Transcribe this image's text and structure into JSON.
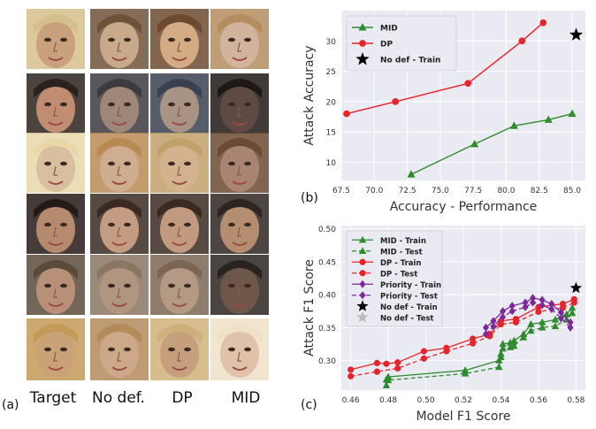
{
  "faces": {
    "column_labels": [
      "Target",
      "No def.",
      "DP",
      "MID"
    ],
    "rows": [
      [
        "#c9a17e",
        "#c8a98a",
        "#d3ab85",
        "#d2b39e"
      ],
      [
        "#c08c72",
        "#9e8678",
        "#a99384",
        "#5e4a42"
      ],
      [
        "#d8bfa0",
        "#cfae8f",
        "#d4b28e",
        "#a98472"
      ],
      [
        "#b68a6e",
        "#c49c82",
        "#c29a80",
        "#b58e72"
      ],
      [
        "#b89078",
        "#b09680",
        "#b49a84",
        "#6e5648"
      ],
      [
        "#c9a277",
        "#cda889",
        "#c6a07c",
        "#e0c2ab"
      ]
    ],
    "hair": [
      [
        "#d6bf8c",
        "#6e5238",
        "#6b4a2f",
        "#b48c5e"
      ],
      [
        "#2a221c",
        "#3b3a3e",
        "#3a4050",
        "#1e1816"
      ],
      [
        "#e8d8a8",
        "#b88a52",
        "#c2a06a",
        "#6b4a32"
      ],
      [
        "#241a16",
        "#3a2a22",
        "#3a2a22",
        "#2e2420"
      ],
      [
        "#5a4a3a",
        "#8a7662",
        "#7a6652",
        "#2a2420"
      ],
      [
        "#c49a58",
        "#b48a5a",
        "#d0b07a",
        "#f0e0c8"
      ]
    ]
  },
  "panel_labels": {
    "a": "(a)",
    "b": "(b)",
    "c": "(c)"
  },
  "colors": {
    "mid": "#2e8b2e",
    "dp": "#e8232a",
    "priority": "#7b2a9a",
    "nodef_train": "#000000",
    "nodef_test": "#bbbbbb"
  },
  "chart_data": [
    {
      "type": "line",
      "panel": "b",
      "xlabel": "Accuracy - Performance",
      "ylabel": "Attack Accuracy",
      "xlim": [
        67.5,
        86
      ],
      "ylim": [
        7,
        35
      ],
      "xticks": [
        "67.5",
        "70.0",
        "72.5",
        "75.0",
        "77.5",
        "80.0",
        "82.5",
        "85.0"
      ],
      "yticks": [
        "10",
        "15",
        "20",
        "25",
        "30"
      ],
      "legend_position": "top-left",
      "series": [
        {
          "name": "MID",
          "color": "#2e8b2e",
          "marker": "triangle",
          "style": "solid",
          "x": [
            72.8,
            77.6,
            80.6,
            83.2,
            85.0
          ],
          "y": [
            8,
            13,
            16,
            17,
            18
          ]
        },
        {
          "name": "DP",
          "color": "#e8232a",
          "marker": "circle",
          "style": "solid",
          "x": [
            67.9,
            71.6,
            77.1,
            81.2,
            82.8
          ],
          "y": [
            18,
            20,
            23,
            30,
            33
          ]
        },
        {
          "name": "No def - Train",
          "color": "#000000",
          "marker": "star",
          "style": "none",
          "x": [
            85.3
          ],
          "y": [
            31
          ]
        }
      ]
    },
    {
      "type": "line",
      "panel": "c",
      "xlabel": "Model F1 Score",
      "ylabel": "Attack F1 Score",
      "xlim": [
        0.455,
        0.585
      ],
      "ylim": [
        0.255,
        0.505
      ],
      "xticks": [
        "0.46",
        "0.48",
        "0.50",
        "0.52",
        "0.54",
        "0.56",
        "0.58"
      ],
      "yticks": [
        "0.30",
        "0.35",
        "0.40",
        "0.45",
        "0.50"
      ],
      "legend_position": "top-left",
      "series": [
        {
          "name": "MID - Train",
          "color": "#2e8b2e",
          "marker": "triangle",
          "style": "solid",
          "x": [
            0.479,
            0.48,
            0.521,
            0.539,
            0.54,
            0.541,
            0.545,
            0.547,
            0.552,
            0.556,
            0.562,
            0.569,
            0.575,
            0.578
          ],
          "y": [
            0.271,
            0.275,
            0.285,
            0.3,
            0.31,
            0.325,
            0.327,
            0.33,
            0.34,
            0.355,
            0.358,
            0.362,
            0.37,
            0.38
          ]
        },
        {
          "name": "MID - Test",
          "color": "#2e8b2e",
          "marker": "triangle",
          "style": "dashed",
          "x": [
            0.479,
            0.48,
            0.521,
            0.539,
            0.54,
            0.541,
            0.545,
            0.547,
            0.552,
            0.556,
            0.562,
            0.569,
            0.575,
            0.578
          ],
          "y": [
            0.262,
            0.27,
            0.28,
            0.29,
            0.305,
            0.318,
            0.32,
            0.322,
            0.335,
            0.345,
            0.35,
            0.352,
            0.362,
            0.372
          ]
        },
        {
          "name": "DP - Train",
          "color": "#e8232a",
          "marker": "circle",
          "style": "solid",
          "x": [
            0.46,
            0.474,
            0.479,
            0.485,
            0.499,
            0.511,
            0.525,
            0.534,
            0.54,
            0.548,
            0.56,
            0.573,
            0.579
          ],
          "y": [
            0.286,
            0.296,
            0.295,
            0.297,
            0.314,
            0.319,
            0.333,
            0.34,
            0.36,
            0.363,
            0.381,
            0.386,
            0.393
          ]
        },
        {
          "name": "DP - Test",
          "color": "#e8232a",
          "marker": "circle",
          "style": "dashed",
          "x": [
            0.46,
            0.474,
            0.485,
            0.499,
            0.511,
            0.525,
            0.534,
            0.54,
            0.548,
            0.56,
            0.573,
            0.579
          ],
          "y": [
            0.276,
            0.283,
            0.288,
            0.303,
            0.314,
            0.326,
            0.337,
            0.355,
            0.358,
            0.374,
            0.38,
            0.388
          ]
        },
        {
          "name": "Priority - Train",
          "color": "#7b2a9a",
          "marker": "diamond",
          "style": "solid",
          "x": [
            0.532,
            0.536,
            0.541,
            0.546,
            0.553,
            0.557,
            0.562,
            0.567,
            0.572,
            0.577
          ],
          "y": [
            0.35,
            0.36,
            0.375,
            0.383,
            0.388,
            0.395,
            0.392,
            0.386,
            0.373,
            0.358
          ]
        },
        {
          "name": "Priority - Test",
          "color": "#7b2a9a",
          "marker": "diamond",
          "style": "dashed",
          "x": [
            0.532,
            0.536,
            0.541,
            0.546,
            0.553,
            0.557,
            0.562,
            0.567,
            0.572,
            0.577
          ],
          "y": [
            0.34,
            0.352,
            0.366,
            0.375,
            0.381,
            0.388,
            0.384,
            0.378,
            0.364,
            0.35
          ]
        },
        {
          "name": "No def - Train",
          "color": "#000000",
          "marker": "star",
          "style": "none",
          "x": [
            0.58
          ],
          "y": [
            0.41
          ]
        },
        {
          "name": "No def - Test",
          "color": "#bbbbbb",
          "marker": "star",
          "style": "none",
          "x": [],
          "y": []
        }
      ]
    }
  ]
}
